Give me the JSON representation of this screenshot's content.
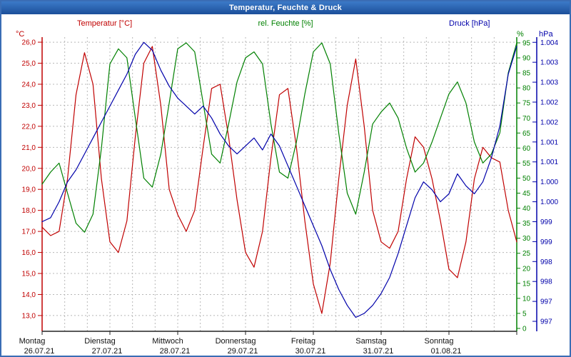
{
  "window": {
    "title": "Temperatur, Feuchte & Druck"
  },
  "chart_data": {
    "type": "line",
    "title": "Temperatur, Feuchte & Druck",
    "grid": true,
    "legend_position": "top",
    "x_axis": {
      "gridlines_per_day": 3,
      "days": [
        {
          "name": "Montag",
          "date": "26.07.21"
        },
        {
          "name": "Dienstag",
          "date": "27.07.21"
        },
        {
          "name": "Mittwoch",
          "date": "28.07.21"
        },
        {
          "name": "Donnerstag",
          "date": "29.07.21"
        },
        {
          "name": "Freitag",
          "date": "30.07.21"
        },
        {
          "name": "Samstag",
          "date": "31.07.21"
        },
        {
          "name": "Sonntag",
          "date": "01.08.21"
        }
      ]
    },
    "axes": {
      "temperature": {
        "label": "Temperatur [°C]",
        "unit": "°C",
        "color": "#c00000",
        "side": "left",
        "range_top": 26.24,
        "range_bottom": 12.25,
        "tick_values": [
          26,
          25,
          24,
          23,
          22,
          21,
          20,
          19,
          18,
          17,
          16,
          15,
          14,
          13
        ],
        "tick_labels": [
          "26,0",
          "25,0",
          "24,0",
          "23,0",
          "22,0",
          "21,0",
          "20,0",
          "19,0",
          "18,0",
          "17,0",
          "16,0",
          "15,0",
          "14,0",
          "13,0"
        ]
      },
      "humidity": {
        "label": "rel. Feuchte [%]",
        "unit": "%",
        "color": "#008000",
        "side": "right-inner",
        "range_top": 96.9,
        "range_bottom": -0.96,
        "tick_values": [
          95,
          90,
          85,
          80,
          75,
          70,
          65,
          60,
          55,
          50,
          45,
          40,
          35,
          30,
          25,
          20,
          15,
          10,
          5,
          0
        ],
        "tick_labels": [
          "95",
          "90",
          "85",
          "80",
          "75",
          "70",
          "65",
          "60",
          "55",
          "50",
          "45",
          "40",
          "35",
          "30",
          "25",
          "20",
          "15",
          "10",
          "5",
          "0"
        ]
      },
      "pressure": {
        "label": "Druck [hPa]",
        "unit": "hPa",
        "color": "#0000aa",
        "side": "right-outer",
        "range_top": 1004.13,
        "range_bottom": 996.75,
        "tick_values": [
          1004,
          1003.5,
          1003,
          1002.5,
          1002,
          1001.5,
          1001,
          1000.5,
          1000,
          999.5,
          999,
          998.5,
          998,
          997.5,
          997
        ],
        "tick_labels": [
          "1.004",
          "1.003",
          "1.003",
          "1.002",
          "1.002",
          "1.001",
          "1.001",
          "1.000",
          "1.000",
          "999",
          "999",
          "998",
          "998",
          "997",
          "997"
        ]
      }
    },
    "sampling": {
      "start_day": 0,
      "step_days": 0.125,
      "total_days": 7
    },
    "series": [
      {
        "name": "Temperatur",
        "axis": "temperature",
        "color": "#c00000",
        "values": [
          17.2,
          16.8,
          17.0,
          19.5,
          23.5,
          25.5,
          24.0,
          19.5,
          16.5,
          16.0,
          17.5,
          21.5,
          25.0,
          25.8,
          23.0,
          19.0,
          17.8,
          17.0,
          18.0,
          21.0,
          23.8,
          24.0,
          21.5,
          18.5,
          16.0,
          15.3,
          17.0,
          20.5,
          23.5,
          23.8,
          21.0,
          17.5,
          14.5,
          13.1,
          15.5,
          19.5,
          23.0,
          25.2,
          22.0,
          18.0,
          16.5,
          16.2,
          17.0,
          19.5,
          21.5,
          21.0,
          19.5,
          17.5,
          15.2,
          14.8,
          16.5,
          19.5,
          21.0,
          20.5,
          20.3,
          18.0,
          16.5
        ]
      },
      {
        "name": "rel. Feuchte",
        "axis": "humidity",
        "color": "#008000",
        "values": [
          48,
          52,
          55,
          45,
          35,
          32,
          38,
          60,
          88,
          93,
          90,
          70,
          50,
          47,
          58,
          75,
          93,
          95,
          92,
          75,
          58,
          55,
          68,
          82,
          90,
          92,
          88,
          68,
          52,
          50,
          62,
          78,
          92,
          95,
          88,
          65,
          45,
          38,
          52,
          68,
          72,
          75,
          70,
          60,
          52,
          55,
          62,
          70,
          78,
          82,
          75,
          62,
          55,
          58,
          65,
          85,
          95
        ]
      },
      {
        "name": "Druck",
        "axis": "pressure",
        "color": "#0000aa",
        "values": [
          999.5,
          999.6,
          1000.0,
          1000.5,
          1000.8,
          1001.2,
          1001.6,
          1002.0,
          1002.4,
          1002.8,
          1003.2,
          1003.7,
          1004.0,
          1003.8,
          1003.3,
          1002.9,
          1002.6,
          1002.4,
          1002.2,
          1002.4,
          1002.1,
          1001.7,
          1001.4,
          1001.2,
          1001.4,
          1001.6,
          1001.3,
          1001.7,
          1001.4,
          1000.9,
          1000.4,
          999.9,
          999.4,
          998.9,
          998.3,
          997.8,
          997.4,
          997.1,
          997.2,
          997.4,
          997.7,
          998.1,
          998.7,
          999.4,
          1000.1,
          1000.5,
          1000.3,
          1000.0,
          1000.2,
          1000.7,
          1000.4,
          1000.2,
          1000.5,
          1001.1,
          1001.9,
          1003.2,
          1003.9
        ]
      }
    ]
  }
}
